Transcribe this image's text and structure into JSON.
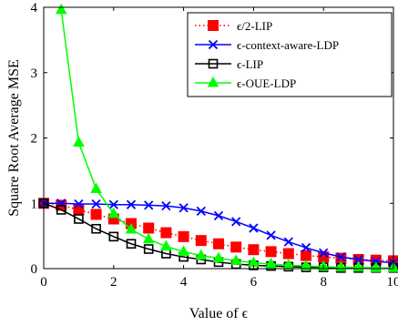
{
  "chart_data": {
    "type": "line",
    "xlabel": "Value of ϵ",
    "ylabel": "Square Root Average MSE",
    "xlim": [
      0,
      10
    ],
    "ylim": [
      0,
      4
    ],
    "xticks": [
      0,
      2,
      4,
      6,
      8,
      10
    ],
    "yticks": [
      0,
      1,
      2,
      3,
      4
    ],
    "grid": false,
    "legend_position": "top-right",
    "series": [
      {
        "name": "ϵ/2-LIP",
        "color": "#ff0000",
        "marker": "square-filled",
        "line": "dotted",
        "x": [
          0,
          0.5,
          1,
          1.5,
          2,
          2.5,
          3,
          3.5,
          4,
          4.5,
          5,
          5.5,
          6,
          6.5,
          7,
          7.5,
          8,
          8.5,
          9,
          9.5,
          10
        ],
        "y": [
          1.0,
          0.97,
          0.9,
          0.83,
          0.76,
          0.69,
          0.62,
          0.55,
          0.49,
          0.43,
          0.38,
          0.33,
          0.29,
          0.26,
          0.23,
          0.2,
          0.18,
          0.16,
          0.14,
          0.13,
          0.12
        ]
      },
      {
        "name": "ϵ-context-aware-LDP",
        "color": "#0000ff",
        "marker": "x",
        "line": "solid",
        "x": [
          0,
          0.5,
          1,
          1.5,
          2,
          2.5,
          3,
          3.5,
          4,
          4.5,
          5,
          5.5,
          6,
          6.5,
          7,
          7.5,
          8,
          8.5,
          9,
          9.5,
          10
        ],
        "y": [
          1.0,
          1.0,
          0.99,
          0.99,
          0.98,
          0.98,
          0.97,
          0.96,
          0.93,
          0.88,
          0.81,
          0.72,
          0.62,
          0.51,
          0.41,
          0.32,
          0.24,
          0.18,
          0.14,
          0.11,
          0.09
        ]
      },
      {
        "name": "ϵ-LIP",
        "color": "#000000",
        "marker": "square-open",
        "line": "solid",
        "x": [
          0,
          0.5,
          1,
          1.5,
          2,
          2.5,
          3,
          3.5,
          4,
          4.5,
          5,
          5.5,
          6,
          6.5,
          7,
          7.5,
          8,
          8.5,
          9,
          9.5,
          10
        ],
        "y": [
          1.0,
          0.9,
          0.76,
          0.61,
          0.49,
          0.38,
          0.3,
          0.23,
          0.18,
          0.14,
          0.1,
          0.07,
          0.05,
          0.04,
          0.03,
          0.02,
          0.02,
          0.01,
          0.01,
          0.01,
          0.01
        ]
      },
      {
        "name": "ϵ-OUE-LDP",
        "color": "#00ff00",
        "marker": "triangle",
        "line": "solid",
        "x": [
          0.5,
          1,
          1.5,
          2,
          2.5,
          3,
          3.5,
          4,
          4.5,
          5,
          5.5,
          6,
          6.5,
          7,
          7.5,
          8,
          8.5,
          9,
          9.5,
          10
        ],
        "y": [
          3.96,
          1.93,
          1.22,
          0.84,
          0.6,
          0.45,
          0.34,
          0.26,
          0.2,
          0.16,
          0.12,
          0.09,
          0.07,
          0.05,
          0.04,
          0.03,
          0.02,
          0.02,
          0.01,
          0.01
        ]
      }
    ]
  }
}
